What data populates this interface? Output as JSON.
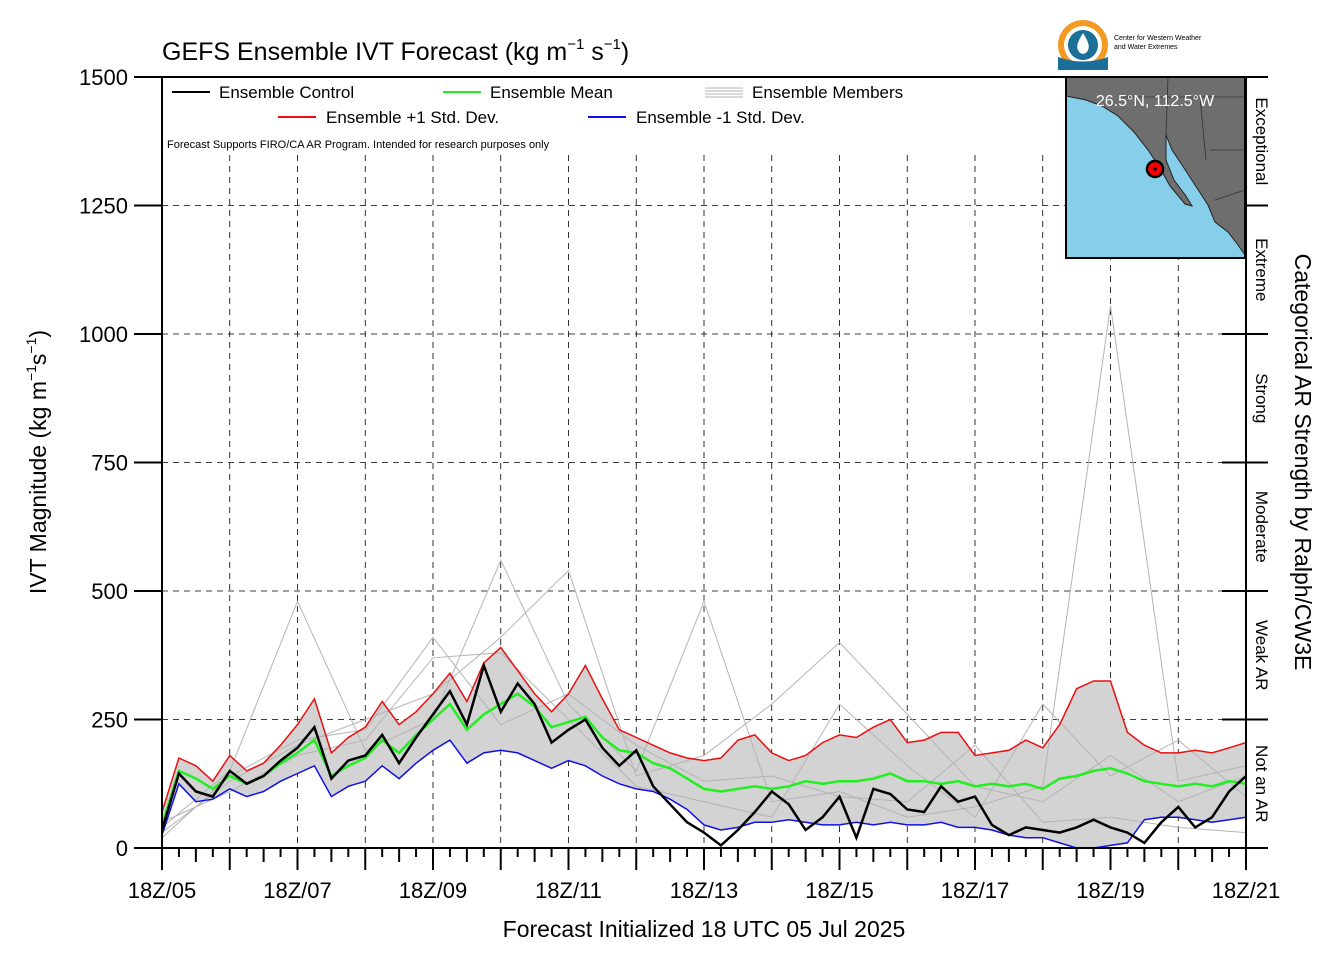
{
  "chart_data": {
    "type": "line",
    "title": "GEFS Ensemble IVT Forecast (kg m",
    "title_sup1": "−1",
    "title_mid": " s",
    "title_sup2": "−1",
    "title_end": ")",
    "xlabel": "Forecast Initialized 18 UTC 05 Jul 2025",
    "ylabel": "IVT Magnitude (kg m",
    "ylabel_sup1": "−1",
    "ylabel_mid": "s",
    "ylabel_sup2": "−1",
    "ylabel_end": ")",
    "right_label": "Categorical AR Strength by Ralph/CW3E",
    "note": "Forecast Supports FIRO/CA AR Program. Intended for research purposes only",
    "xlim": [
      0,
      16
    ],
    "ylim": [
      0,
      1500
    ],
    "x_ticks": [
      0,
      2,
      4,
      6,
      8,
      10,
      12,
      14,
      16
    ],
    "x_tick_labels": [
      "18Z/05",
      "18Z/07",
      "18Z/09",
      "18Z/11",
      "18Z/13",
      "18Z/15",
      "18Z/17",
      "18Z/19",
      "18Z/21"
    ],
    "y_ticks": [
      0,
      250,
      500,
      750,
      1000,
      1250,
      1500
    ],
    "y_tick_labels": [
      "0",
      "250",
      "500",
      "750",
      "1000",
      "1250",
      "1500"
    ],
    "grid": true,
    "categories": [
      {
        "label": "Not an AR",
        "range": [
          0,
          250
        ]
      },
      {
        "label": "Weak AR",
        "range": [
          250,
          500
        ]
      },
      {
        "label": "Moderate",
        "range": [
          500,
          750
        ]
      },
      {
        "label": "Strong",
        "range": [
          750,
          1000
        ]
      },
      {
        "label": "Extreme",
        "range": [
          1000,
          1250
        ]
      },
      {
        "label": "Exceptional",
        "range": [
          1250,
          1500
        ]
      }
    ],
    "legend": {
      "control": "Ensemble Control",
      "mean": "Ensemble Mean",
      "members": "Ensemble Members",
      "plus": "Ensemble +1 Std. Dev.",
      "minus": "Ensemble -1 Std. Dev."
    },
    "location_label": "26.5°N, 112.5°W",
    "logo_text": [
      "Center for Western Weather",
      "and Water Extremes"
    ],
    "colors": {
      "control": "#000000",
      "mean": "#22ee22",
      "plus": "#e81010",
      "minus": "#1010e8",
      "members": "#b4b4b4",
      "band": "#d3d3d3",
      "ocean": "#87ceeb",
      "land": "#6e6e6e",
      "logo_orange": "#f39a25",
      "logo_blue": "#1c6f99"
    },
    "series": {
      "control": {
        "x": [
          0,
          0.25,
          0.5,
          0.75,
          1,
          1.25,
          1.5,
          1.75,
          2,
          2.25,
          2.5,
          2.75,
          3,
          3.25,
          3.5,
          3.75,
          4,
          4.25,
          4.5,
          4.75,
          5,
          5.25,
          5.5,
          5.75,
          6,
          6.25,
          6.5,
          6.75,
          7,
          7.25,
          7.5,
          7.75,
          8,
          8.25,
          8.5,
          8.75,
          9,
          9.25,
          9.5,
          9.75,
          10,
          10.25,
          10.5,
          10.75,
          11,
          11.25,
          11.5,
          11.75,
          12,
          12.25,
          12.5,
          12.75,
          13,
          13.25,
          13.5,
          13.75,
          14,
          14.25,
          14.5,
          14.75,
          15,
          15.25,
          15.5,
          15.75,
          16
        ],
        "y": [
          35,
          145,
          110,
          100,
          150,
          125,
          140,
          170,
          195,
          235,
          135,
          170,
          180,
          220,
          165,
          215,
          260,
          305,
          240,
          355,
          265,
          320,
          280,
          205,
          230,
          250,
          195,
          160,
          190,
          120,
          85,
          50,
          30,
          5,
          35,
          70,
          110,
          85,
          35,
          60,
          100,
          20,
          115,
          105,
          75,
          70,
          120,
          90,
          100,
          45,
          25,
          40,
          35,
          30,
          40,
          55,
          40,
          30,
          10,
          50,
          80,
          40,
          60,
          110,
          140
        ]
      },
      "mean": {
        "x": [
          0,
          0.25,
          0.5,
          0.75,
          1,
          1.25,
          1.5,
          1.75,
          2,
          2.25,
          2.5,
          2.75,
          3,
          3.25,
          3.5,
          3.75,
          4,
          4.25,
          4.5,
          4.75,
          5,
          5.25,
          5.5,
          5.75,
          6,
          6.25,
          6.5,
          6.75,
          7,
          7.25,
          7.5,
          7.75,
          8,
          8.25,
          8.5,
          8.75,
          9,
          9.25,
          9.5,
          9.75,
          10,
          10.25,
          10.5,
          10.75,
          11,
          11.25,
          11.5,
          11.75,
          12,
          12.25,
          12.5,
          12.75,
          13,
          13.25,
          13.5,
          13.75,
          14,
          14.25,
          14.5,
          14.75,
          15,
          15.25,
          15.5,
          15.75,
          16
        ],
        "y": [
          45,
          150,
          135,
          115,
          140,
          125,
          140,
          165,
          185,
          210,
          140,
          160,
          175,
          210,
          185,
          220,
          250,
          280,
          230,
          260,
          280,
          300,
          275,
          235,
          245,
          255,
          215,
          190,
          185,
          165,
          155,
          135,
          115,
          110,
          115,
          120,
          115,
          120,
          130,
          125,
          130,
          130,
          135,
          145,
          130,
          130,
          125,
          130,
          120,
          125,
          120,
          125,
          115,
          135,
          140,
          150,
          155,
          145,
          130,
          125,
          120,
          125,
          120,
          130,
          125
        ]
      },
      "plus": {
        "x": [
          0,
          0.25,
          0.5,
          0.75,
          1,
          1.25,
          1.5,
          1.75,
          2,
          2.25,
          2.5,
          2.75,
          3,
          3.25,
          3.5,
          3.75,
          4,
          4.25,
          4.5,
          4.75,
          5,
          5.25,
          5.5,
          5.75,
          6,
          6.25,
          6.5,
          6.75,
          7,
          7.25,
          7.5,
          7.75,
          8,
          8.25,
          8.5,
          8.75,
          9,
          9.25,
          9.5,
          9.75,
          10,
          10.25,
          10.5,
          10.75,
          11,
          11.25,
          11.5,
          11.75,
          12,
          12.25,
          12.5,
          12.75,
          13,
          13.25,
          13.5,
          13.75,
          14,
          14.25,
          14.5,
          14.75,
          15,
          15.25,
          15.5,
          15.75,
          16
        ],
        "y": [
          70,
          175,
          160,
          130,
          180,
          150,
          165,
          200,
          240,
          290,
          185,
          215,
          235,
          285,
          240,
          265,
          300,
          340,
          285,
          360,
          390,
          345,
          300,
          265,
          300,
          355,
          290,
          230,
          215,
          200,
          185,
          175,
          170,
          175,
          210,
          220,
          185,
          170,
          180,
          205,
          220,
          215,
          235,
          250,
          205,
          210,
          225,
          225,
          180,
          185,
          190,
          210,
          195,
          240,
          310,
          325,
          325,
          225,
          200,
          185,
          185,
          190,
          185,
          195,
          205
        ]
      },
      "minus": {
        "x": [
          0,
          0.25,
          0.5,
          0.75,
          1,
          1.25,
          1.5,
          1.75,
          2,
          2.25,
          2.5,
          2.75,
          3,
          3.25,
          3.5,
          3.75,
          4,
          4.25,
          4.5,
          4.75,
          5,
          5.25,
          5.5,
          5.75,
          6,
          6.25,
          6.5,
          6.75,
          7,
          7.25,
          7.5,
          7.75,
          8,
          8.25,
          8.5,
          8.75,
          9,
          9.25,
          9.5,
          9.75,
          10,
          10.25,
          10.5,
          10.75,
          11,
          11.25,
          11.5,
          11.75,
          12,
          12.25,
          12.5,
          12.75,
          13,
          13.25,
          13.5,
          13.75,
          14,
          14.25,
          14.5,
          14.75,
          15,
          15.25,
          15.5,
          15.75,
          16
        ],
        "y": [
          25,
          125,
          90,
          95,
          115,
          100,
          110,
          130,
          145,
          160,
          100,
          120,
          130,
          160,
          135,
          165,
          190,
          210,
          165,
          185,
          190,
          185,
          170,
          155,
          170,
          160,
          140,
          125,
          115,
          110,
          95,
          75,
          45,
          35,
          40,
          50,
          50,
          55,
          50,
          45,
          45,
          50,
          45,
          50,
          45,
          45,
          50,
          40,
          40,
          35,
          25,
          20,
          20,
          10,
          0,
          0,
          5,
          10,
          55,
          60,
          60,
          55,
          50,
          55,
          60
        ]
      },
      "members": [
        {
          "x": [
            0,
            1,
            2,
            3,
            4,
            5,
            6,
            7,
            8,
            9,
            10,
            11,
            12,
            13,
            14,
            15,
            16
          ],
          "y": [
            40,
            150,
            480,
            190,
            250,
            560,
            280,
            150,
            480,
            90,
            110,
            60,
            80,
            120,
            1055,
            130,
            160
          ]
        },
        {
          "x": [
            0,
            1,
            2,
            3,
            4,
            5,
            6,
            7,
            8,
            9,
            10,
            11,
            12,
            13,
            14,
            15,
            16
          ],
          "y": [
            30,
            130,
            200,
            250,
            300,
            410,
            540,
            140,
            180,
            280,
            400,
            260,
            120,
            90,
            180,
            90,
            140
          ]
        },
        {
          "x": [
            0,
            1,
            2,
            3,
            4,
            5,
            6,
            7,
            8,
            9,
            10,
            11,
            12,
            13,
            14,
            15,
            16
          ],
          "y": [
            50,
            110,
            180,
            210,
            370,
            380,
            250,
            120,
            90,
            60,
            280,
            160,
            60,
            280,
            140,
            210,
            100
          ]
        },
        {
          "x": [
            0,
            1,
            2,
            3,
            4,
            5,
            6,
            7,
            8,
            9,
            10,
            11,
            12,
            13,
            14,
            15,
            16
          ],
          "y": [
            20,
            140,
            210,
            230,
            410,
            240,
            300,
            200,
            130,
            140,
            100,
            90,
            200,
            50,
            60,
            40,
            30
          ]
        }
      ]
    }
  }
}
